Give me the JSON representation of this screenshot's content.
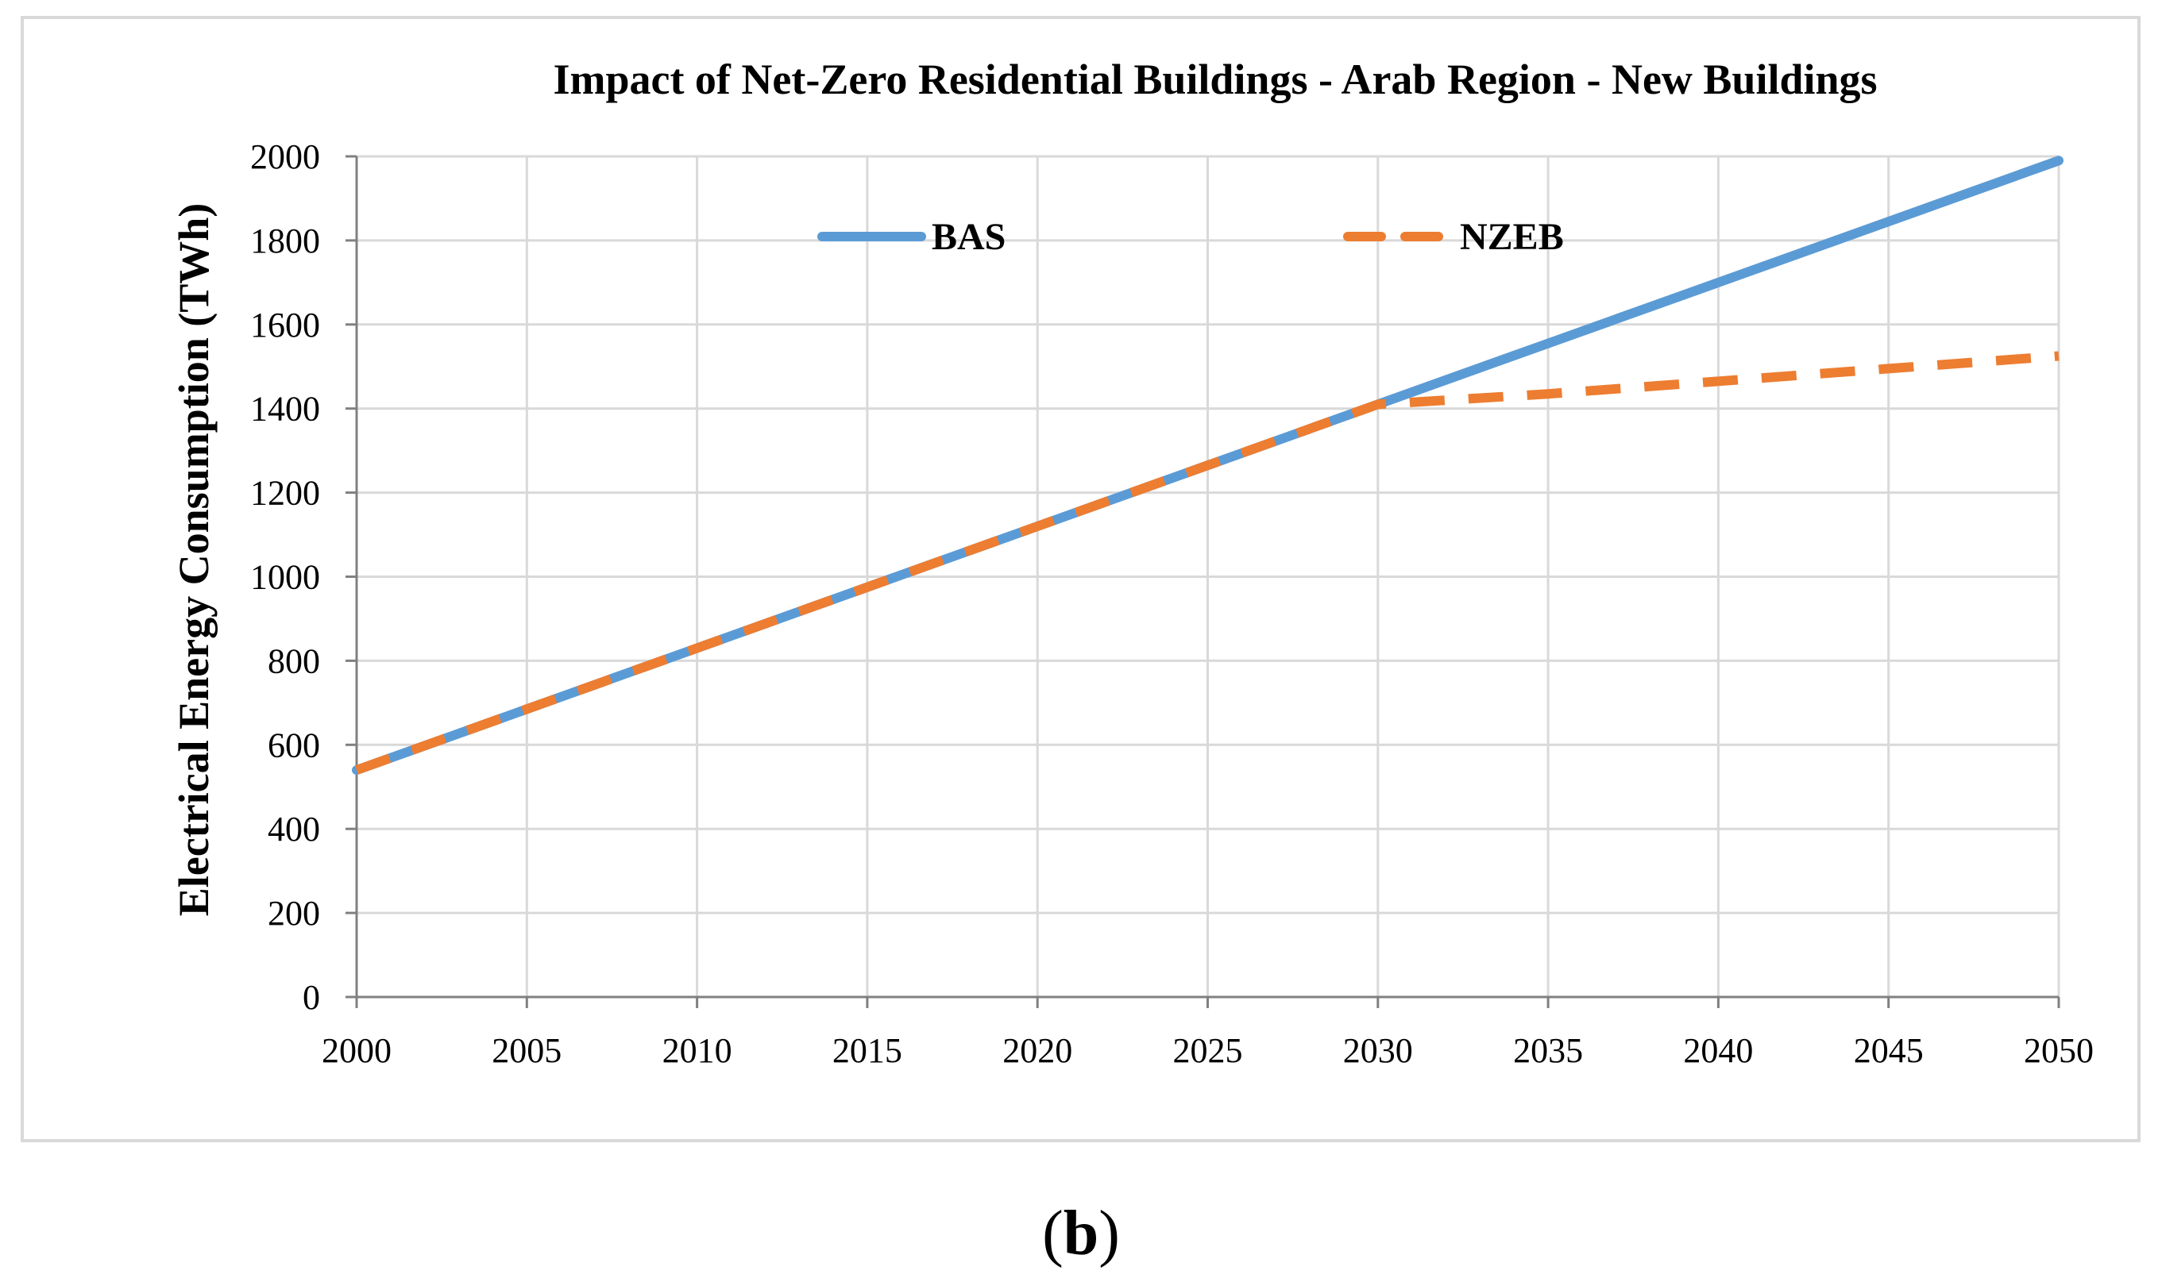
{
  "chart_data": {
    "type": "line",
    "title": "Impact of  Net-Zero Residential Buildings - Arab Region - New Buildings",
    "xlabel": "",
    "ylabel": "Electrical Energy Consumption (TWh)",
    "xlim": [
      2000,
      2050
    ],
    "ylim": [
      0,
      2000
    ],
    "x_ticks": [
      2000,
      2005,
      2010,
      2015,
      2020,
      2025,
      2030,
      2035,
      2040,
      2045,
      2050
    ],
    "y_ticks": [
      0,
      200,
      400,
      600,
      800,
      1000,
      1200,
      1400,
      1600,
      1800,
      2000
    ],
    "grid": true,
    "legend_position": "top",
    "series": [
      {
        "name": "BAS",
        "color": "#5B9BD5",
        "style": "solid",
        "x": [
          2000,
          2005,
          2010,
          2015,
          2020,
          2025,
          2030,
          2035,
          2040,
          2045,
          2050
        ],
        "values": [
          540,
          685,
          830,
          975,
          1120,
          1265,
          1410,
          1555,
          1700,
          1845,
          1990
        ]
      },
      {
        "name": "NZEB",
        "color": "#ED7D31",
        "style": "dashed",
        "x": [
          2000,
          2005,
          2010,
          2015,
          2020,
          2025,
          2030,
          2035,
          2040,
          2045,
          2050
        ],
        "values": [
          540,
          685,
          830,
          975,
          1120,
          1265,
          1410,
          1435,
          1465,
          1495,
          1525
        ]
      }
    ]
  },
  "panel_label": {
    "open": "(",
    "letter": "b",
    "close": ")"
  }
}
